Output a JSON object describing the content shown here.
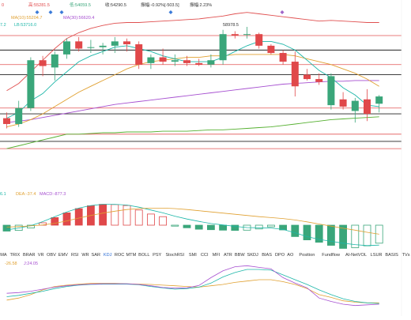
{
  "colors": {
    "up": "#3aa67a",
    "down": "#e0484a",
    "ma5": "#1cb6a8",
    "ma10": "#e0a030",
    "ma30": "#a64fd0",
    "boll_up": "#e05050",
    "boll_mid": "#e0a030",
    "boll_low": "#55b030",
    "hline_red": "#e25353",
    "hline_black": "#222222",
    "active_tab": "#2f6fd6",
    "ohlc_high": "#e0484a",
    "ohlc_low": "#3aa67a"
  },
  "header": {
    "o_label": "0",
    "high": "高:55281.5",
    "low": "低:54059.5",
    "close": "收:54290.5",
    "change": "振幅:-0.92%[-503.5]",
    "amp": "振幅:2.23%"
  },
  "ma_legend": {
    "ma5": "7.2",
    "ma5_label": "LB:53716.0",
    "ma10": "MA(10):55204.7",
    "ma30": "MA(30):56620.4"
  },
  "price_label": "58978.5",
  "macd_legend": {
    "dif": "6.1",
    "dea": "DEA:-37.4",
    "macd": "MACD:-877.3"
  },
  "kdj_legend": {
    "k": "-26.58",
    "d": "J:24.05"
  },
  "indicator_tabs": [
    "DMA",
    "TRIX",
    "BRAR",
    "VR",
    "OBV",
    "EMV",
    "RSI",
    "WR",
    "SAR",
    "KDJ",
    "ROC",
    "MTM",
    "BOLL",
    "PSY",
    "StochRSI",
    "SMI",
    "CCI",
    "MFI",
    "ATR",
    "BBW",
    "SKDJ",
    "BIAS",
    "DPO",
    "AO",
    "Position",
    "Fundflow",
    "AI-NetVOL",
    "LSUR",
    "BASIS",
    "TVs"
  ],
  "active_tab": "KDJ",
  "candles": [
    {
      "o": 54600,
      "h": 55000,
      "l": 53900,
      "c": 54200
    },
    {
      "o": 54200,
      "h": 55800,
      "l": 54000,
      "c": 55300
    },
    {
      "o": 55300,
      "h": 58800,
      "l": 55100,
      "c": 58600
    },
    {
      "o": 58600,
      "h": 58900,
      "l": 57500,
      "c": 58200
    },
    {
      "o": 58100,
      "h": 59200,
      "l": 57200,
      "c": 59000
    },
    {
      "o": 59000,
      "h": 60100,
      "l": 58700,
      "c": 59900
    },
    {
      "o": 59900,
      "h": 60200,
      "l": 59200,
      "c": 59400
    },
    {
      "o": 59500,
      "h": 60000,
      "l": 59100,
      "c": 59500
    },
    {
      "o": 59500,
      "h": 59800,
      "l": 59000,
      "c": 59600
    },
    {
      "o": 59600,
      "h": 60200,
      "l": 59100,
      "c": 59900
    },
    {
      "o": 59900,
      "h": 60100,
      "l": 59200,
      "c": 59700
    },
    {
      "o": 59700,
      "h": 59900,
      "l": 58000,
      "c": 58300
    },
    {
      "o": 58400,
      "h": 59000,
      "l": 58000,
      "c": 58800
    },
    {
      "o": 58800,
      "h": 59400,
      "l": 58300,
      "c": 58500
    },
    {
      "o": 58500,
      "h": 59000,
      "l": 58200,
      "c": 58600
    },
    {
      "o": 58600,
      "h": 58900,
      "l": 58200,
      "c": 58400
    },
    {
      "o": 58400,
      "h": 58700,
      "l": 58200,
      "c": 58300
    },
    {
      "o": 58300,
      "h": 59000,
      "l": 58100,
      "c": 58600
    },
    {
      "o": 58600,
      "h": 60700,
      "l": 58300,
      "c": 60400
    },
    {
      "o": 60400,
      "h": 60600,
      "l": 60100,
      "c": 60300
    },
    {
      "o": 60400,
      "h": 60900,
      "l": 60100,
      "c": 60400
    },
    {
      "o": 60400,
      "h": 60500,
      "l": 59400,
      "c": 59600
    },
    {
      "o": 59600,
      "h": 59700,
      "l": 59000,
      "c": 59100
    },
    {
      "o": 59100,
      "h": 59300,
      "l": 58300,
      "c": 58500
    },
    {
      "o": 58500,
      "h": 59200,
      "l": 56100,
      "c": 56800
    },
    {
      "o": 57600,
      "h": 58000,
      "l": 57200,
      "c": 57300
    },
    {
      "o": 57300,
      "h": 57700,
      "l": 56900,
      "c": 57100
    },
    {
      "o": 55500,
      "h": 57700,
      "l": 55200,
      "c": 57500
    },
    {
      "o": 55900,
      "h": 56400,
      "l": 55200,
      "c": 55400
    },
    {
      "o": 55100,
      "h": 56000,
      "l": 54300,
      "c": 55800
    },
    {
      "o": 55900,
      "h": 56600,
      "l": 54400,
      "c": 54900
    },
    {
      "o": 55600,
      "h": 56200,
      "l": 55000,
      "c": 56100
    }
  ],
  "ma_lines": {
    "ma5": [
      54600,
      55000,
      55800,
      56300,
      57100,
      57800,
      58500,
      58900,
      59200,
      59500,
      59600,
      59400,
      59200,
      58900,
      58700,
      58500,
      58500,
      58500,
      58800,
      59200,
      59600,
      59900,
      59900,
      59700,
      59300,
      58600,
      57900,
      57400,
      56700,
      56200,
      55500,
      55400
    ],
    "ma10": [
      54000,
      54200,
      54500,
      54900,
      55400,
      55900,
      56400,
      56800,
      57200,
      57600,
      58000,
      58300,
      58500,
      58600,
      58700,
      58800,
      58800,
      58900,
      58900,
      59000,
      59000,
      59000,
      59000,
      59000,
      58900,
      58700,
      58500,
      58300,
      58000,
      57700,
      57300,
      56800
    ],
    "ma30": [
      54300,
      54400,
      54500,
      54650,
      54800,
      54950,
      55100,
      55250,
      55400,
      55550,
      55650,
      55750,
      55850,
      55950,
      56050,
      56150,
      56250,
      56350,
      56450,
      56550,
      56650,
      56750,
      56850,
      56950,
      57000,
      57050,
      57100,
      57150,
      57150,
      57200,
      57200,
      57200
    ]
  },
  "boll": {
    "upper": [
      56500,
      57000,
      57800,
      58600,
      59400,
      60100,
      60500,
      60800,
      61000,
      61150,
      61200,
      61200,
      61250,
      61300,
      61350,
      61400,
      61450,
      61550,
      61650,
      61800,
      61900,
      61800,
      61700,
      61600,
      61500,
      61400,
      61300,
      61350,
      61300,
      61250,
      61200,
      61200
    ],
    "lower": [
      52500,
      52700,
      52900,
      53100,
      53300,
      53500,
      53500,
      53550,
      53600,
      53600,
      53650,
      53650,
      53650,
      53700,
      53700,
      53700,
      53750,
      53800,
      53800,
      53850,
      53900,
      53950,
      54000,
      54100,
      54200,
      54300,
      54400,
      54500,
      54550,
      54600,
      54650,
      54700
    ]
  },
  "hlines_red": [
    60300,
    58300,
    55300,
    53500,
    52500
  ],
  "hlines_black": [
    59300,
    57600,
    54900,
    53000
  ],
  "macd": {
    "hist": [
      -250,
      -220,
      -120,
      100,
      320,
      520,
      700,
      820,
      880,
      870,
      830,
      640,
      470,
      360,
      -40,
      -110,
      -170,
      -190,
      -210,
      -220,
      -210,
      -160,
      -70,
      -200,
      -480,
      -620,
      -720,
      -850,
      -980,
      -950,
      -870,
      -760
    ],
    "dif": [
      -200,
      -120,
      -20,
      150,
      360,
      560,
      720,
      830,
      880,
      880,
      850,
      760,
      640,
      520,
      380,
      260,
      160,
      70,
      10,
      -50,
      -100,
      -110,
      -120,
      -180,
      -320,
      -480,
      -600,
      -680,
      -760,
      -820,
      -860,
      -840
    ],
    "dea": [
      -80,
      -60,
      -30,
      10,
      80,
      180,
      300,
      410,
      510,
      590,
      660,
      700,
      720,
      720,
      700,
      660,
      610,
      560,
      510,
      460,
      410,
      360,
      320,
      280,
      220,
      140,
      50,
      -40,
      -130,
      -210,
      -300,
      -380
    ]
  },
  "kdj": {
    "k": [
      -6,
      -4,
      0,
      6,
      12,
      16,
      19,
      21,
      22,
      22,
      22,
      20,
      16,
      11,
      9,
      10,
      17,
      40,
      60,
      72,
      75,
      70,
      66,
      40,
      24,
      10,
      -20,
      -30,
      -38,
      -42,
      -40,
      -38
    ],
    "d": [
      -16,
      -12,
      -6,
      0,
      8,
      14,
      18,
      20,
      21,
      21,
      21,
      19,
      14,
      10,
      6,
      8,
      12,
      24,
      42,
      55,
      64,
      64,
      62,
      48,
      34,
      20,
      4,
      -10,
      -22,
      -30,
      -34,
      -36
    ],
    "j": [
      -26,
      -20,
      -10,
      4,
      14,
      18,
      21,
      23,
      23,
      23,
      22,
      21,
      20,
      18,
      16,
      14,
      12,
      16,
      20,
      26,
      30,
      34,
      34,
      28,
      20,
      8,
      -10,
      -18,
      -28,
      -32,
      -34,
      -34
    ]
  },
  "markers": {
    "blue_count": 4,
    "purple_count": 1
  }
}
